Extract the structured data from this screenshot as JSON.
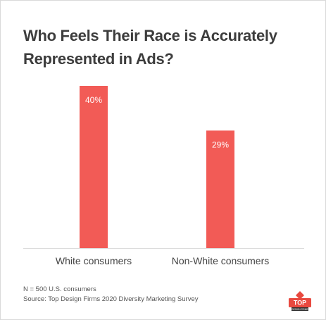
{
  "chart_data": {
    "type": "bar",
    "title": "Who Feels Their Race is Accurately Represented in Ads?",
    "categories": [
      "White consumers",
      "Non-White consumers"
    ],
    "values": [
      40,
      29
    ],
    "value_labels": [
      "40%",
      "29%"
    ],
    "unit": "%",
    "ylim": [
      0,
      40
    ],
    "grid": false,
    "legend": "none",
    "bar_color": "#f25b56",
    "label_color": "#ffffff"
  },
  "notes": {
    "sample": "N = 500 U.S. consumers",
    "source": "Source: Top Design Firms 2020 Diversity Marketing Survey"
  },
  "logo": {
    "name": "top-design-firms-logo",
    "text": "TOP",
    "subtext": "DESIGN FIRMS",
    "color": "#e8493f"
  }
}
